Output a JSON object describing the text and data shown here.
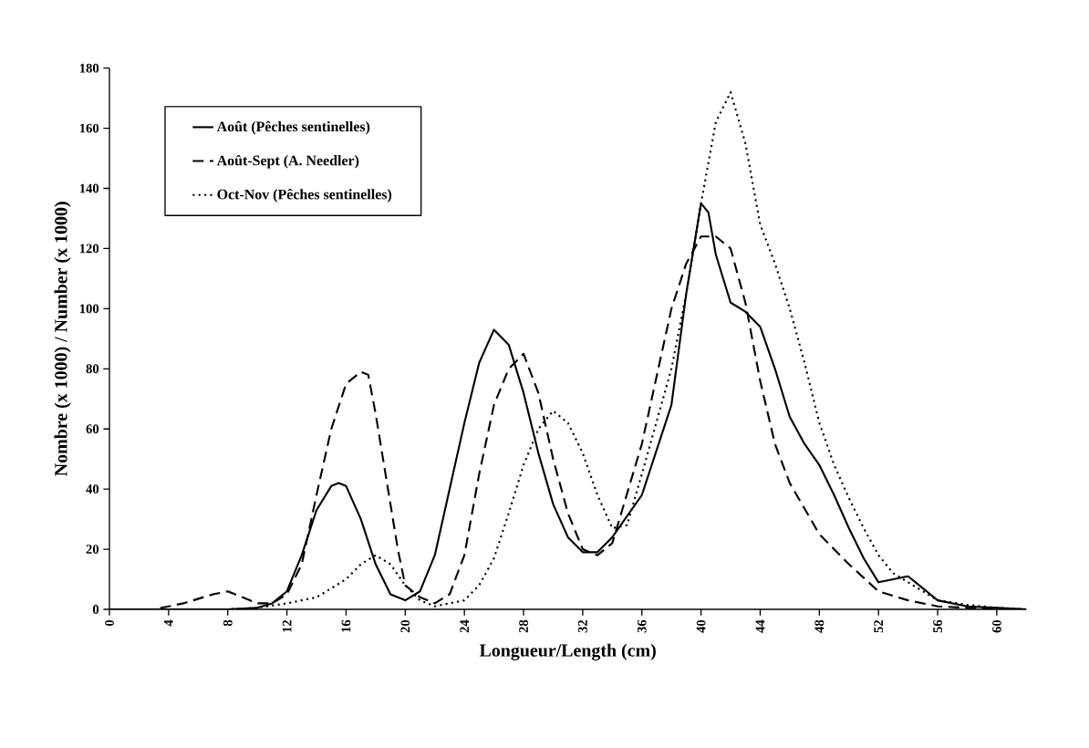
{
  "chart_data": {
    "type": "line",
    "xlabel": "Longueur/Length (cm)",
    "ylabel": "Nombre (x 1000) / Number (x 1000)",
    "xlim": [
      0,
      62
    ],
    "ylim": [
      0,
      180
    ],
    "xticks": [
      0,
      4,
      8,
      12,
      16,
      20,
      24,
      28,
      32,
      36,
      40,
      44,
      48,
      52,
      56,
      60
    ],
    "yticks": [
      0,
      20,
      40,
      60,
      80,
      100,
      120,
      140,
      160,
      180
    ],
    "grid": false,
    "legend": "top left",
    "marker": "none",
    "series": [
      {
        "name": "Août (Pêches sentinelles)",
        "color": "#000000",
        "line_style": "solid",
        "x": [
          0,
          4,
          8,
          10,
          11,
          12,
          13,
          14,
          15,
          15.5,
          16,
          17,
          18,
          19,
          20,
          21,
          22,
          23,
          24,
          25,
          26,
          27,
          28,
          29,
          30,
          31,
          32,
          33,
          34,
          36,
          38,
          39,
          40,
          40.5,
          41,
          42,
          43,
          44,
          45,
          46,
          47,
          48,
          49,
          50,
          51,
          52,
          53,
          54,
          55,
          56,
          58,
          60,
          62
        ],
        "values": [
          0,
          0,
          0,
          0.5,
          2,
          6,
          18,
          33,
          41,
          42,
          41,
          30,
          15,
          5,
          3,
          6,
          18,
          40,
          62,
          82,
          93,
          88,
          72,
          52,
          35,
          24,
          19,
          19,
          24,
          38,
          68,
          105,
          135,
          132,
          118,
          102,
          99,
          94,
          80,
          64,
          55,
          48,
          38,
          27,
          17,
          9,
          10,
          11,
          7,
          3,
          1,
          0.5,
          0
        ]
      },
      {
        "name": "Août-Sept (A. Needler)",
        "color": "#000000",
        "line_style": "dashed",
        "x": [
          0,
          3,
          5,
          7,
          8,
          9,
          10,
          11,
          12,
          13,
          14,
          15,
          16,
          17,
          17.5,
          18,
          19,
          19.5,
          20,
          21,
          22,
          23,
          24,
          25,
          26,
          27,
          28,
          29,
          30,
          31,
          32,
          33,
          34,
          36,
          38,
          39,
          40,
          41,
          42,
          43,
          44,
          45,
          46,
          48,
          50,
          52,
          54,
          56,
          58,
          62
        ],
        "values": [
          0,
          0,
          2,
          5,
          6,
          4,
          2,
          2,
          5,
          15,
          38,
          60,
          75,
          79,
          78,
          65,
          35,
          20,
          8,
          4,
          2,
          5,
          18,
          45,
          68,
          80,
          85,
          72,
          50,
          32,
          20,
          18,
          22,
          55,
          100,
          115,
          124,
          124,
          120,
          102,
          76,
          55,
          42,
          25,
          15,
          6,
          3,
          1,
          0.5,
          0
        ]
      },
      {
        "name": "Oct-Nov (Pêches sentinelles)",
        "color": "#000000",
        "line_style": "dotted",
        "x": [
          0,
          6,
          8,
          10,
          12,
          14,
          16,
          17,
          18,
          19,
          20,
          21,
          22,
          24,
          25,
          26,
          27,
          28,
          29,
          30,
          31,
          32,
          33,
          34,
          35,
          36,
          38,
          39,
          40,
          41,
          42,
          43,
          44,
          45,
          46,
          47,
          48,
          49,
          50,
          51,
          52,
          53,
          54,
          55,
          56,
          58,
          60,
          62
        ],
        "values": [
          0,
          0,
          0,
          0.5,
          2,
          4,
          10,
          15,
          18,
          15,
          8,
          3,
          1,
          3,
          8,
          17,
          32,
          48,
          60,
          66,
          62,
          52,
          38,
          27,
          28,
          45,
          80,
          105,
          135,
          162,
          172,
          155,
          128,
          115,
          100,
          82,
          62,
          48,
          37,
          27,
          18,
          12,
          9,
          6,
          3,
          1.5,
          0.5,
          0
        ]
      }
    ]
  }
}
